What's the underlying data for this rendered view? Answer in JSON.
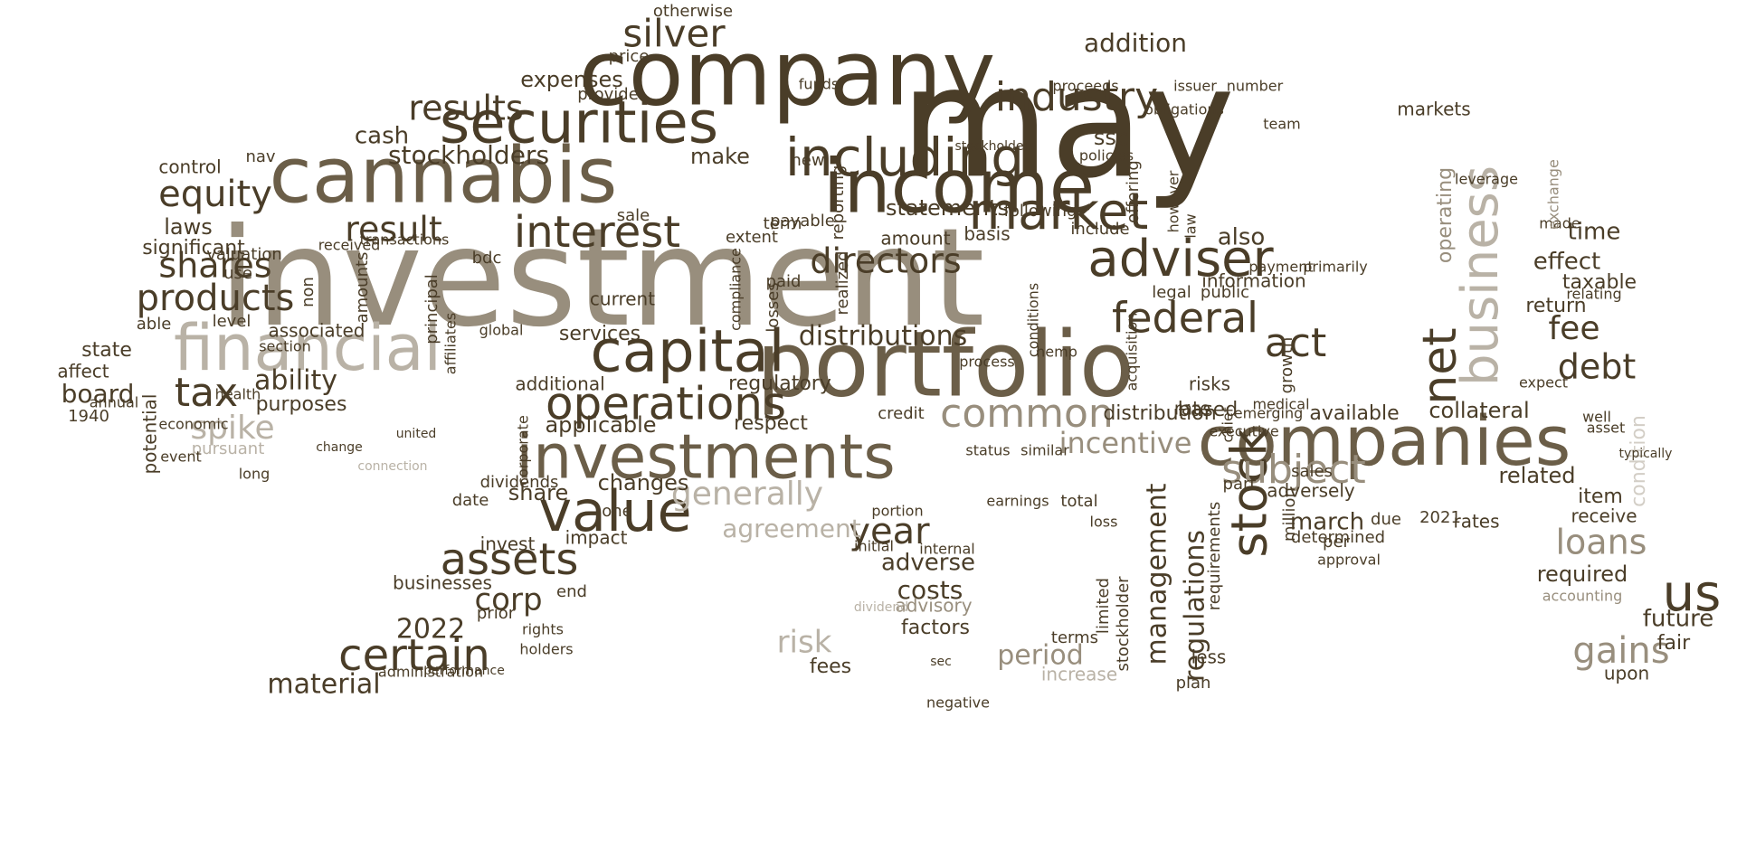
{
  "palette": {
    "dark": "#4a3d28",
    "mid": "#6b5e48",
    "light": "#988e7d",
    "pale": "#b9b2a6",
    "faint": "#d3cec6"
  },
  "words": [
    {
      "text": "investment",
      "tone": "light"
    },
    {
      "text": "may",
      "tone": "dark"
    },
    {
      "text": "company",
      "tone": "dark"
    },
    {
      "text": "portfolio",
      "tone": "mid"
    },
    {
      "text": "cannabis",
      "tone": "mid"
    },
    {
      "text": "income",
      "tone": "dark"
    },
    {
      "text": "companies",
      "tone": "mid"
    },
    {
      "text": "investments",
      "tone": "mid"
    },
    {
      "text": "financial",
      "tone": "pale"
    },
    {
      "text": "securities",
      "tone": "dark"
    },
    {
      "text": "capital",
      "tone": "dark"
    },
    {
      "text": "value",
      "tone": "dark"
    },
    {
      "text": "business",
      "tone": "pale"
    },
    {
      "text": "including",
      "tone": "dark"
    },
    {
      "text": "market",
      "tone": "dark"
    },
    {
      "text": "adviser",
      "tone": "dark"
    },
    {
      "text": "operations",
      "tone": "dark"
    },
    {
      "text": "interest",
      "tone": "dark"
    },
    {
      "text": "stock",
      "tone": "dark"
    },
    {
      "text": "net",
      "tone": "dark"
    },
    {
      "text": "assets",
      "tone": "dark"
    },
    {
      "text": "certain",
      "tone": "dark"
    },
    {
      "text": "industry",
      "tone": "dark"
    },
    {
      "text": "federal",
      "tone": "dark"
    },
    {
      "text": "common",
      "tone": "light"
    },
    {
      "text": "subject",
      "tone": "light"
    },
    {
      "text": "silver",
      "tone": "dark"
    },
    {
      "text": "results",
      "tone": "dark"
    },
    {
      "text": "directors",
      "tone": "dark"
    },
    {
      "text": "result",
      "tone": "dark"
    },
    {
      "text": "tax",
      "tone": "dark"
    },
    {
      "text": "equity",
      "tone": "dark"
    },
    {
      "text": "products",
      "tone": "dark"
    },
    {
      "text": "shares",
      "tone": "dark"
    },
    {
      "text": "debt",
      "tone": "dark"
    },
    {
      "text": "us",
      "tone": "dark"
    },
    {
      "text": "act",
      "tone": "dark"
    },
    {
      "text": "fee",
      "tone": "dark"
    },
    {
      "text": "year",
      "tone": "dark"
    },
    {
      "text": "generally",
      "tone": "pale"
    },
    {
      "text": "management",
      "tone": "dark"
    },
    {
      "text": "regulations",
      "tone": "dark"
    },
    {
      "text": "loans",
      "tone": "light"
    },
    {
      "text": "gains",
      "tone": "light"
    },
    {
      "text": "distributions",
      "tone": "dark"
    },
    {
      "text": "incentive",
      "tone": "light"
    },
    {
      "text": "spike",
      "tone": "pale"
    },
    {
      "text": "corp",
      "tone": "dark"
    },
    {
      "text": "ability",
      "tone": "dark"
    },
    {
      "text": "period",
      "tone": "light"
    },
    {
      "text": "risk",
      "tone": "pale"
    },
    {
      "text": "costs",
      "tone": "dark"
    },
    {
      "text": "material",
      "tone": "dark"
    },
    {
      "text": "2022",
      "tone": "dark"
    },
    {
      "text": "agreement",
      "tone": "pale"
    },
    {
      "text": "board",
      "tone": "dark"
    },
    {
      "text": "stockholders",
      "tone": "dark"
    },
    {
      "text": "statements",
      "tone": "dark"
    },
    {
      "text": "addition",
      "tone": "dark"
    },
    {
      "text": "expenses",
      "tone": "dark"
    },
    {
      "text": "cash",
      "tone": "dark"
    },
    {
      "text": "operating",
      "tone": "light"
    },
    {
      "text": "condition",
      "tone": "faint"
    },
    {
      "text": "applicable",
      "tone": "dark"
    },
    {
      "text": "changes",
      "tone": "dark"
    },
    {
      "text": "share",
      "tone": "dark"
    },
    {
      "text": "adverse",
      "tone": "dark"
    },
    {
      "text": "future",
      "tone": "dark"
    },
    {
      "text": "related",
      "tone": "dark"
    },
    {
      "text": "required",
      "tone": "dark"
    },
    {
      "text": "march",
      "tone": "dark"
    },
    {
      "text": "also",
      "tone": "dark"
    },
    {
      "text": "effect",
      "tone": "dark"
    },
    {
      "text": "time",
      "tone": "dark"
    },
    {
      "text": "make",
      "tone": "dark"
    },
    {
      "text": "available",
      "tone": "dark"
    },
    {
      "text": "based",
      "tone": "dark"
    },
    {
      "text": "distribution",
      "tone": "dark"
    },
    {
      "text": "credit",
      "tone": "dark"
    },
    {
      "text": "respect",
      "tone": "dark"
    },
    {
      "text": "services",
      "tone": "dark"
    },
    {
      "text": "additional",
      "tone": "dark"
    },
    {
      "text": "regulatory",
      "tone": "dark"
    },
    {
      "text": "current",
      "tone": "dark"
    },
    {
      "text": "impact",
      "tone": "dark"
    },
    {
      "text": "invest",
      "tone": "dark"
    },
    {
      "text": "businesses",
      "tone": "dark"
    },
    {
      "text": "factors",
      "tone": "dark"
    },
    {
      "text": "advisory",
      "tone": "light"
    },
    {
      "text": "fees",
      "tone": "dark"
    },
    {
      "text": "terms",
      "tone": "dark"
    },
    {
      "text": "increase",
      "tone": "pale"
    },
    {
      "text": "less",
      "tone": "dark"
    },
    {
      "text": "plan",
      "tone": "dark"
    },
    {
      "text": "adversely",
      "tone": "dark"
    },
    {
      "text": "rates",
      "tone": "dark"
    },
    {
      "text": "sales",
      "tone": "dark"
    },
    {
      "text": "laws",
      "tone": "dark"
    },
    {
      "text": "significant",
      "tone": "dark"
    },
    {
      "text": "purposes",
      "tone": "dark"
    },
    {
      "text": "associated",
      "tone": "dark"
    },
    {
      "text": "amount",
      "tone": "dark"
    },
    {
      "text": "basis",
      "tone": "dark"
    },
    {
      "text": "payable",
      "tone": "dark"
    },
    {
      "text": "markets",
      "tone": "dark"
    },
    {
      "text": "taxable",
      "tone": "dark"
    },
    {
      "text": "information",
      "tone": "dark"
    },
    {
      "text": "return",
      "tone": "dark"
    },
    {
      "text": "collateral",
      "tone": "dark"
    },
    {
      "text": "receive",
      "tone": "dark"
    },
    {
      "text": "item",
      "tone": "dark"
    },
    {
      "text": "fair",
      "tone": "dark"
    },
    {
      "text": "upon",
      "tone": "dark"
    },
    {
      "text": "accounting",
      "tone": "light"
    },
    {
      "text": "state",
      "tone": "dark"
    },
    {
      "text": "affect",
      "tone": "dark"
    },
    {
      "text": "potential",
      "tone": "dark"
    },
    {
      "text": "pursuant",
      "tone": "pale"
    },
    {
      "text": "1940",
      "tone": "dark"
    },
    {
      "text": "control",
      "tone": "dark"
    },
    {
      "text": "valuation",
      "tone": "dark"
    },
    {
      "text": "price",
      "tone": "dark"
    },
    {
      "text": "provide",
      "tone": "dark"
    },
    {
      "text": "otherwise",
      "tone": "dark"
    },
    {
      "text": "funds",
      "tone": "dark"
    },
    {
      "text": "new",
      "tone": "dark"
    },
    {
      "text": "ssc",
      "tone": "dark"
    },
    {
      "text": "include",
      "tone": "dark"
    },
    {
      "text": "legal",
      "tone": "dark"
    },
    {
      "text": "public",
      "tone": "dark"
    },
    {
      "text": "risks",
      "tone": "dark"
    },
    {
      "text": "rate",
      "tone": "dark"
    },
    {
      "text": "part",
      "tone": "dark"
    },
    {
      "text": "growth",
      "tone": "dark"
    },
    {
      "text": "million",
      "tone": "dark"
    },
    {
      "text": "per",
      "tone": "dark"
    },
    {
      "text": "due",
      "tone": "dark"
    },
    {
      "text": "2021",
      "tone": "dark"
    },
    {
      "text": "approval",
      "tone": "dark"
    },
    {
      "text": "determined",
      "tone": "dark"
    },
    {
      "text": "total",
      "tone": "dark"
    },
    {
      "text": "loss",
      "tone": "dark"
    },
    {
      "text": "requirements",
      "tone": "dark"
    },
    {
      "text": "limited",
      "tone": "dark"
    },
    {
      "text": "stockholder",
      "tone": "dark"
    },
    {
      "text": "end",
      "tone": "dark"
    },
    {
      "text": "prior",
      "tone": "dark"
    },
    {
      "text": "dividends",
      "tone": "dark"
    },
    {
      "text": "date",
      "tone": "dark"
    },
    {
      "text": "one",
      "tone": "dark"
    },
    {
      "text": "annual",
      "tone": "dark"
    },
    {
      "text": "level",
      "tone": "dark"
    },
    {
      "text": "able",
      "tone": "dark"
    },
    {
      "text": "use",
      "tone": "dark"
    },
    {
      "text": "nav",
      "tone": "dark"
    },
    {
      "text": "economic",
      "tone": "dark"
    },
    {
      "text": "event",
      "tone": "dark"
    },
    {
      "text": "long",
      "tone": "dark"
    },
    {
      "text": "section",
      "tone": "dark"
    },
    {
      "text": "transactions",
      "tone": "dark"
    },
    {
      "text": "received",
      "tone": "dark"
    },
    {
      "text": "bdc",
      "tone": "dark"
    },
    {
      "text": "principal",
      "tone": "dark"
    },
    {
      "text": "non",
      "tone": "dark"
    },
    {
      "text": "amounts",
      "tone": "dark"
    },
    {
      "text": "affiliates",
      "tone": "dark"
    },
    {
      "text": "global",
      "tone": "dark"
    },
    {
      "text": "sale",
      "tone": "dark"
    },
    {
      "text": "extent",
      "tone": "dark"
    },
    {
      "text": "term",
      "tone": "dark"
    },
    {
      "text": "paid",
      "tone": "dark"
    },
    {
      "text": "realized",
      "tone": "dark"
    },
    {
      "text": "reporting",
      "tone": "dark"
    },
    {
      "text": "losses",
      "tone": "dark"
    },
    {
      "text": "compliance",
      "tone": "dark"
    },
    {
      "text": "following",
      "tone": "dark"
    },
    {
      "text": "offering",
      "tone": "dark"
    },
    {
      "text": "however",
      "tone": "dark"
    },
    {
      "text": "policies",
      "tone": "dark"
    },
    {
      "text": "obligations",
      "tone": "dark"
    },
    {
      "text": "issuer",
      "tone": "dark"
    },
    {
      "text": "number",
      "tone": "dark"
    },
    {
      "text": "proceeds",
      "tone": "dark"
    },
    {
      "text": "team",
      "tone": "dark"
    },
    {
      "text": "law",
      "tone": "dark"
    },
    {
      "text": "medical",
      "tone": "dark"
    },
    {
      "text": "payment",
      "tone": "dark"
    },
    {
      "text": "primarily",
      "tone": "dark"
    },
    {
      "text": "made",
      "tone": "dark"
    },
    {
      "text": "exchange",
      "tone": "light"
    },
    {
      "text": "relating",
      "tone": "dark"
    },
    {
      "text": "expect",
      "tone": "dark"
    },
    {
      "text": "well",
      "tone": "dark"
    },
    {
      "text": "asset",
      "tone": "dark"
    },
    {
      "text": "typically",
      "tone": "dark"
    },
    {
      "text": "executive",
      "tone": "dark"
    },
    {
      "text": "emerging",
      "tone": "dark"
    },
    {
      "text": "chief",
      "tone": "dark"
    },
    {
      "text": "process",
      "tone": "dark"
    },
    {
      "text": "earnings",
      "tone": "dark"
    },
    {
      "text": "status",
      "tone": "dark"
    },
    {
      "text": "similar",
      "tone": "dark"
    },
    {
      "text": "hemp",
      "tone": "dark"
    },
    {
      "text": "acquisition",
      "tone": "dark"
    },
    {
      "text": "conditions",
      "tone": "dark"
    },
    {
      "text": "leverage",
      "tone": "dark"
    },
    {
      "text": "dividend",
      "tone": "pale"
    },
    {
      "text": "portion",
      "tone": "dark"
    },
    {
      "text": "negative",
      "tone": "dark"
    },
    {
      "text": "sec",
      "tone": "dark"
    },
    {
      "text": "internal",
      "tone": "dark"
    },
    {
      "text": "initial",
      "tone": "dark"
    },
    {
      "text": "corporate",
      "tone": "dark"
    },
    {
      "text": "rights",
      "tone": "dark"
    },
    {
      "text": "holders",
      "tone": "dark"
    },
    {
      "text": "performance",
      "tone": "dark"
    },
    {
      "text": "administration",
      "tone": "dark"
    },
    {
      "text": "health",
      "tone": "dark"
    },
    {
      "text": "connection",
      "tone": "pale"
    },
    {
      "text": "united",
      "tone": "dark"
    },
    {
      "text": "change",
      "tone": "dark"
    },
    {
      "text": "stockholders",
      "tone": "dark"
    }
  ]
}
